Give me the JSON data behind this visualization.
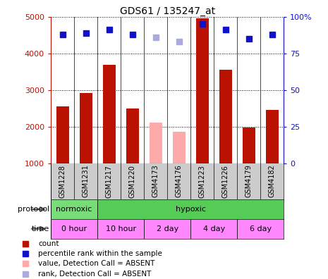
{
  "title": "GDS61 / 135247_at",
  "samples": [
    "GSM1228",
    "GSM1231",
    "GSM1217",
    "GSM1220",
    "GSM4173",
    "GSM4176",
    "GSM1223",
    "GSM1226",
    "GSM4179",
    "GSM4182"
  ],
  "bar_values": [
    2550,
    2920,
    3680,
    2500,
    2100,
    1850,
    4950,
    3550,
    1980,
    2450
  ],
  "bar_absent": [
    false,
    false,
    false,
    false,
    true,
    true,
    false,
    false,
    false,
    false
  ],
  "rank_values": [
    88,
    89,
    91,
    88,
    86,
    83,
    95,
    91,
    85,
    88
  ],
  "rank_absent": [
    false,
    false,
    false,
    false,
    true,
    true,
    false,
    false,
    false,
    false
  ],
  "bar_color_present": "#bb1100",
  "bar_color_absent": "#ffaaaa",
  "rank_color_present": "#1111cc",
  "rank_color_absent": "#aaaadd",
  "ylim_left": [
    1000,
    5000
  ],
  "ylim_right": [
    0,
    100
  ],
  "yticks_left": [
    1000,
    2000,
    3000,
    4000,
    5000
  ],
  "yticks_right": [
    0,
    25,
    50,
    75,
    100
  ],
  "normoxic_color": "#77dd77",
  "hypoxic_color": "#55cc55",
  "time_color": "#ff88ff",
  "sample_bg": "#cccccc",
  "legend_items": [
    {
      "color": "#bb1100",
      "label": "count"
    },
    {
      "color": "#1111cc",
      "label": "percentile rank within the sample"
    },
    {
      "color": "#ffaaaa",
      "label": "value, Detection Call = ABSENT"
    },
    {
      "color": "#aaaadd",
      "label": "rank, Detection Call = ABSENT"
    }
  ]
}
